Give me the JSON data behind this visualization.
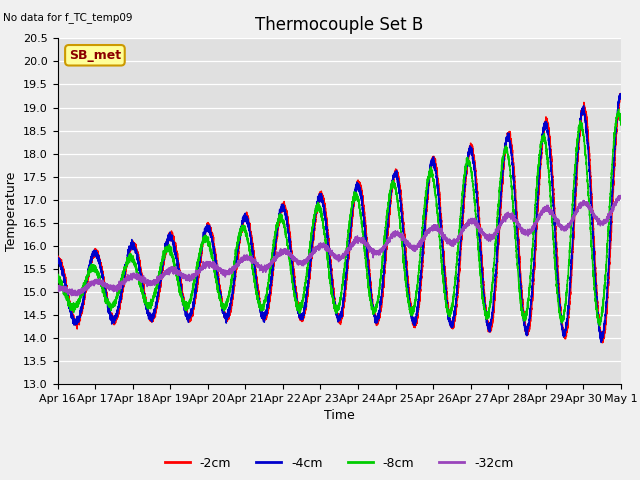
{
  "title": "Thermocouple Set B",
  "annotation": "No data for f_TC_temp09",
  "xlabel": "Time",
  "ylabel": "Temperature",
  "ylim": [
    13.0,
    20.5
  ],
  "plot_bg_color": "#e0e0e0",
  "fig_bg_color": "#f0f0f0",
  "grid_color": "#ffffff",
  "legend_labels": [
    "-2cm",
    "-4cm",
    "-8cm",
    "-32cm"
  ],
  "legend_colors": [
    "#ff0000",
    "#0000cc",
    "#00cc00",
    "#9944bb"
  ],
  "legend_box_facecolor": "#ffff99",
  "legend_box_edgecolor": "#cc9900",
  "sb_met_label": "SB_met",
  "tick_label_size": 8,
  "axis_label_size": 9,
  "title_size": 12,
  "line_width": 1.1
}
